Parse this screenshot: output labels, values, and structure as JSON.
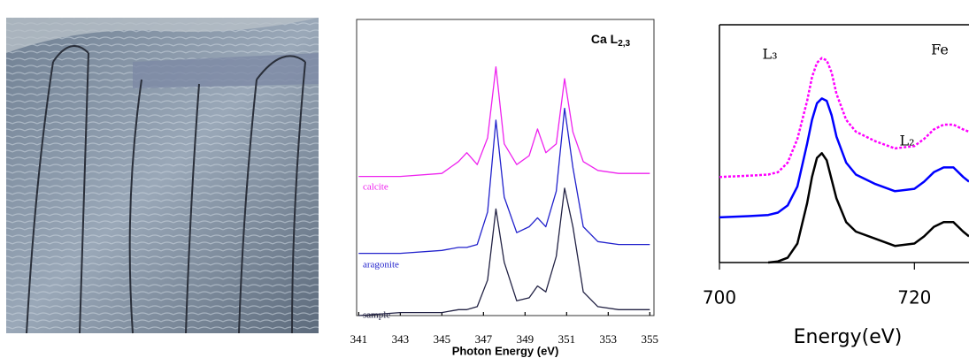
{
  "chart_data": [
    {
      "type": "line",
      "title": "Ca L",
      "title_subscript": "2,3",
      "xlabel": "Photon Energy (eV)",
      "x": [
        341,
        343,
        345,
        345.8,
        346.2,
        346.7,
        347.2,
        347.6,
        348,
        348.6,
        349.2,
        349.6,
        350,
        350.5,
        350.9,
        351.3,
        351.8,
        352.5,
        353.5,
        355
      ],
      "series": [
        {
          "name": "calcite",
          "color": "#ee22ee",
          "values": [
            47,
            47,
            48,
            52,
            55,
            51,
            60,
            84,
            58,
            51,
            54,
            63,
            55,
            58,
            80,
            62,
            52,
            49,
            48,
            48
          ]
        },
        {
          "name": "aragonite",
          "color": "#2222cc",
          "values": [
            21,
            21,
            22,
            23,
            23,
            24,
            35,
            66,
            40,
            28,
            30,
            33,
            30,
            42,
            70,
            50,
            30,
            25,
            24,
            24
          ]
        },
        {
          "name": "sample",
          "color": "#222244",
          "values": [
            0,
            1,
            1,
            2,
            2,
            3,
            12,
            36,
            18,
            5,
            6,
            10,
            8,
            20,
            43,
            30,
            8,
            3,
            2,
            2
          ]
        }
      ],
      "xlim": [
        340.9,
        355.2
      ],
      "ylim": [
        0,
        100
      ],
      "xticks": [
        341,
        343,
        345,
        347,
        349,
        351,
        353,
        355
      ]
    },
    {
      "type": "line",
      "xlabel": "Energy(eV)",
      "annotations": [
        "L₃",
        "Fe",
        "L₂"
      ],
      "x": [
        700,
        703,
        705,
        706,
        707,
        708,
        709,
        709.5,
        710,
        710.5,
        711,
        711.5,
        712,
        713,
        714,
        716,
        718,
        720,
        721,
        722,
        723,
        724,
        725,
        725.6
      ],
      "series": [
        {
          "color": "#ff00ff",
          "dashed": true,
          "values": [
            36,
            36.5,
            37,
            38,
            42,
            52,
            68,
            78,
            84,
            86,
            85,
            80,
            71,
            60,
            55,
            51,
            48,
            49,
            52,
            56,
            58,
            58,
            56,
            55
          ]
        },
        {
          "color": "#0000ff",
          "values": [
            19,
            19.5,
            20,
            21,
            24,
            32,
            50,
            60,
            67,
            69,
            68,
            62,
            53,
            42,
            37,
            33,
            30,
            31,
            34,
            38,
            40,
            40,
            36,
            34
          ]
        },
        {
          "color": "#000000",
          "values": [
            null,
            null,
            0,
            0.5,
            2,
            8,
            25,
            36,
            44,
            46,
            43,
            35,
            27,
            17,
            13,
            10,
            7,
            8,
            11,
            15,
            17,
            17,
            13,
            11
          ]
        }
      ],
      "xlim": [
        700,
        725.6
      ],
      "ylim": [
        0,
        100
      ],
      "xticks": [
        700,
        720
      ]
    }
  ]
}
